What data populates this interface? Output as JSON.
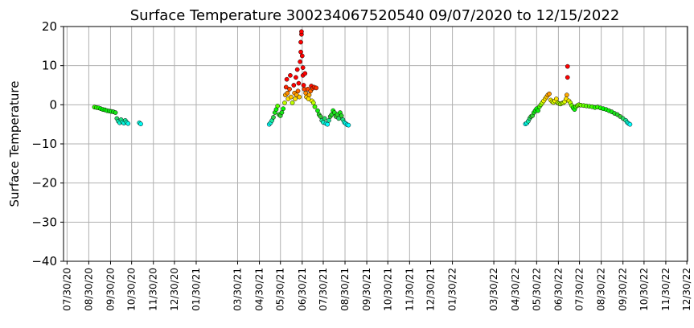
{
  "chart_data": {
    "type": "scatter",
    "title": "Surface Temperature 300234067520540  09/07/2020 to 12/15/2022",
    "xlabel": "",
    "ylabel": "Surface Temperature",
    "ylim": [
      -40,
      20
    ],
    "yticks": [
      20,
      10,
      0,
      -10,
      -20,
      -30,
      -40
    ],
    "ytick_labels": [
      "20",
      "10",
      "0",
      "−10",
      "−20",
      "−30",
      "−40"
    ],
    "xlim": [
      "2020-07-25",
      "2022-12-31"
    ],
    "x_tick_dates": [
      "2020-07-30",
      "2020-08-30",
      "2020-09-30",
      "2020-10-30",
      "2020-11-30",
      "2020-12-30",
      "2021-01-30",
      "2021-03-30",
      "2021-04-30",
      "2021-05-30",
      "2021-06-30",
      "2021-07-30",
      "2021-08-30",
      "2021-09-30",
      "2021-10-30",
      "2021-11-30",
      "2021-12-30",
      "2022-01-30",
      "2022-03-30",
      "2022-04-30",
      "2022-05-30",
      "2022-06-30",
      "2022-07-30",
      "2022-08-30",
      "2022-09-30",
      "2022-10-30",
      "2022-11-30",
      "2022-12-30"
    ],
    "x_tick_labels": [
      "07/30/20",
      "08/30/20",
      "09/30/20",
      "10/30/20",
      "11/30/20",
      "12/30/20",
      "01/30/21",
      "03/30/21",
      "04/30/21",
      "05/30/21",
      "06/30/21",
      "07/30/21",
      "08/30/21",
      "09/30/21",
      "10/30/21",
      "11/30/21",
      "12/30/21",
      "01/30/22",
      "03/30/22",
      "04/30/22",
      "05/30/22",
      "06/30/22",
      "07/30/22",
      "08/30/22",
      "09/30/22",
      "10/30/22",
      "11/30/22",
      "12/30/22"
    ],
    "grid": true,
    "color_scale": {
      "min": -5,
      "max": 5,
      "colors": [
        "#00ffff",
        "#32cd32",
        "#00ff00",
        "#ffff00",
        "#ff8c00",
        "#ff0000"
      ],
      "note": ""
    },
    "series": [
      {
        "points": [
          [
            "2020-09-07",
            -0.6
          ],
          [
            "2020-09-10",
            -0.7
          ],
          [
            "2020-09-13",
            -0.8
          ],
          [
            "2020-09-16",
            -1.0
          ],
          [
            "2020-09-19",
            -1.2
          ],
          [
            "2020-09-22",
            -1.3
          ],
          [
            "2020-09-25",
            -1.5
          ],
          [
            "2020-09-28",
            -1.6
          ],
          [
            "2020-10-01",
            -1.7
          ],
          [
            "2020-10-04",
            -1.8
          ],
          [
            "2020-10-07",
            -2.0
          ],
          [
            "2020-10-09",
            -3.5
          ],
          [
            "2020-10-11",
            -4.2
          ],
          [
            "2020-10-13",
            -4.6
          ],
          [
            "2020-10-15",
            -3.8
          ],
          [
            "2020-10-17",
            -4.4
          ],
          [
            "2020-10-19",
            -4.7
          ],
          [
            "2020-10-21",
            -4.0
          ],
          [
            "2020-10-23",
            -4.5
          ],
          [
            "2020-10-25",
            -4.8
          ],
          [
            "2020-11-10",
            -4.6
          ],
          [
            "2020-11-12",
            -4.9
          ],
          [
            "2021-05-14",
            -5.0
          ],
          [
            "2021-05-16",
            -4.6
          ],
          [
            "2021-05-18",
            -4.0
          ],
          [
            "2021-05-20",
            -3.2
          ],
          [
            "2021-05-22",
            -2.0
          ],
          [
            "2021-05-24",
            -1.2
          ],
          [
            "2021-05-26",
            -0.3
          ],
          [
            "2021-05-28",
            -2.5
          ],
          [
            "2021-05-30",
            -2.8
          ],
          [
            "2021-06-01",
            -2.0
          ],
          [
            "2021-06-03",
            -1.0
          ],
          [
            "2021-06-05",
            0.5
          ],
          [
            "2021-06-06",
            2.5
          ],
          [
            "2021-06-07",
            4.5
          ],
          [
            "2021-06-08",
            6.5
          ],
          [
            "2021-06-09",
            3.0
          ],
          [
            "2021-06-10",
            1.5
          ],
          [
            "2021-06-12",
            4.0
          ],
          [
            "2021-06-13",
            7.5
          ],
          [
            "2021-06-14",
            2.0
          ],
          [
            "2021-06-16",
            0.5
          ],
          [
            "2021-06-18",
            5.0
          ],
          [
            "2021-06-19",
            3.0
          ],
          [
            "2021-06-20",
            1.5
          ],
          [
            "2021-06-21",
            7.0
          ],
          [
            "2021-06-22",
            2.5
          ],
          [
            "2021-06-23",
            9.0
          ],
          [
            "2021-06-24",
            3.5
          ],
          [
            "2021-06-25",
            5.5
          ],
          [
            "2021-06-26",
            2.0
          ],
          [
            "2021-06-27",
            11.0
          ],
          [
            "2021-06-28",
            13.5
          ],
          [
            "2021-06-28",
            16.0
          ],
          [
            "2021-06-29",
            18.0
          ],
          [
            "2021-06-29",
            18.7
          ],
          [
            "2021-06-30",
            12.5
          ],
          [
            "2021-07-01",
            9.5
          ],
          [
            "2021-07-01",
            7.5
          ],
          [
            "2021-07-02",
            5.0
          ],
          [
            "2021-07-03",
            4.0
          ],
          [
            "2021-07-04",
            8.0
          ],
          [
            "2021-07-05",
            3.0
          ],
          [
            "2021-07-06",
            2.0
          ],
          [
            "2021-07-08",
            4.0
          ],
          [
            "2021-07-09",
            1.5
          ],
          [
            "2021-07-10",
            2.5
          ],
          [
            "2021-07-12",
            3.5
          ],
          [
            "2021-07-13",
            4.8
          ],
          [
            "2021-07-14",
            1.0
          ],
          [
            "2021-07-15",
            4.2
          ],
          [
            "2021-07-16",
            0.5
          ],
          [
            "2021-07-17",
            4.5
          ],
          [
            "2021-07-18",
            -0.5
          ],
          [
            "2021-07-20",
            4.3
          ],
          [
            "2021-07-22",
            -1.5
          ],
          [
            "2021-07-24",
            -2.5
          ],
          [
            "2021-07-26",
            -3.0
          ],
          [
            "2021-07-28",
            -4.0
          ],
          [
            "2021-07-30",
            -4.5
          ],
          [
            "2021-08-01",
            -3.5
          ],
          [
            "2021-08-03",
            -4.8
          ],
          [
            "2021-08-05",
            -5.0
          ],
          [
            "2021-08-07",
            -4.0
          ],
          [
            "2021-08-09",
            -3.0
          ],
          [
            "2021-08-11",
            -2.5
          ],
          [
            "2021-08-13",
            -1.5
          ],
          [
            "2021-08-15",
            -2.0
          ],
          [
            "2021-08-17",
            -3.0
          ],
          [
            "2021-08-19",
            -2.5
          ],
          [
            "2021-08-21",
            -3.5
          ],
          [
            "2021-08-23",
            -2.0
          ],
          [
            "2021-08-25",
            -2.8
          ],
          [
            "2021-08-27",
            -3.8
          ],
          [
            "2021-08-29",
            -4.5
          ],
          [
            "2021-08-31",
            -4.8
          ],
          [
            "2021-09-02",
            -5.1
          ],
          [
            "2021-09-04",
            -5.2
          ],
          [
            "2022-05-14",
            -4.9
          ],
          [
            "2022-05-16",
            -4.7
          ],
          [
            "2022-05-18",
            -4.2
          ],
          [
            "2022-05-20",
            -3.5
          ],
          [
            "2022-05-22",
            -3.0
          ],
          [
            "2022-05-24",
            -2.8
          ],
          [
            "2022-05-26",
            -2.0
          ],
          [
            "2022-05-28",
            -1.5
          ],
          [
            "2022-05-30",
            -1.0
          ],
          [
            "2022-06-01",
            -1.5
          ],
          [
            "2022-06-03",
            -0.5
          ],
          [
            "2022-06-05",
            0.0
          ],
          [
            "2022-06-07",
            0.5
          ],
          [
            "2022-06-09",
            1.0
          ],
          [
            "2022-06-11",
            1.5
          ],
          [
            "2022-06-13",
            2.0
          ],
          [
            "2022-06-15",
            2.5
          ],
          [
            "2022-06-17",
            2.8
          ],
          [
            "2022-06-19",
            1.2
          ],
          [
            "2022-06-21",
            0.8
          ],
          [
            "2022-06-23",
            0.6
          ],
          [
            "2022-06-25",
            1.0
          ],
          [
            "2022-06-27",
            1.5
          ],
          [
            "2022-06-29",
            0.5
          ],
          [
            "2022-07-01",
            0.3
          ],
          [
            "2022-07-03",
            0.2
          ],
          [
            "2022-07-05",
            0.4
          ],
          [
            "2022-07-07",
            0.5
          ],
          [
            "2022-07-09",
            0.8
          ],
          [
            "2022-07-11",
            1.5
          ],
          [
            "2022-07-12",
            2.5
          ],
          [
            "2022-07-13",
            9.8
          ],
          [
            "2022-07-13",
            7.0
          ],
          [
            "2022-07-15",
            1.0
          ],
          [
            "2022-07-17",
            0.5
          ],
          [
            "2022-07-19",
            -0.2
          ],
          [
            "2022-07-21",
            -0.8
          ],
          [
            "2022-07-23",
            -1.2
          ],
          [
            "2022-07-25",
            -0.5
          ],
          [
            "2022-07-27",
            -0.2
          ],
          [
            "2022-07-29",
            0.0
          ],
          [
            "2022-08-01",
            -0.1
          ],
          [
            "2022-08-05",
            -0.2
          ],
          [
            "2022-08-09",
            -0.3
          ],
          [
            "2022-08-13",
            -0.4
          ],
          [
            "2022-08-17",
            -0.5
          ],
          [
            "2022-08-21",
            -0.7
          ],
          [
            "2022-08-25",
            -0.6
          ],
          [
            "2022-08-29",
            -0.8
          ],
          [
            "2022-09-02",
            -1.0
          ],
          [
            "2022-09-06",
            -1.2
          ],
          [
            "2022-09-10",
            -1.5
          ],
          [
            "2022-09-14",
            -1.8
          ],
          [
            "2022-09-18",
            -2.2
          ],
          [
            "2022-09-22",
            -2.5
          ],
          [
            "2022-09-26",
            -3.0
          ],
          [
            "2022-09-30",
            -3.5
          ],
          [
            "2022-10-04",
            -4.0
          ],
          [
            "2022-10-06",
            -4.5
          ],
          [
            "2022-10-08",
            -4.8
          ],
          [
            "2022-10-10",
            -5.0
          ]
        ]
      }
    ]
  }
}
